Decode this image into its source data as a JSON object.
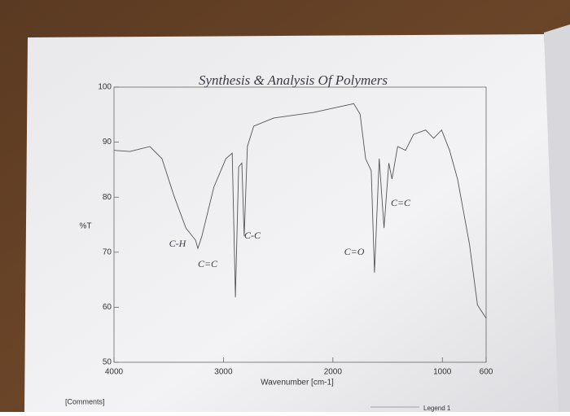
{
  "chart_data": {
    "type": "line",
    "title": "Synthesis & Analysis Of Polymers",
    "x_label": "Wavenumber [cm-1]",
    "y_label": "%T",
    "xlim": [
      4000,
      600
    ],
    "ylim": [
      50,
      100
    ],
    "xticks": [
      4000,
      3000,
      2000,
      1000,
      600
    ],
    "yticks": [
      50,
      60,
      70,
      80,
      90,
      100
    ],
    "annotations": [
      "C-H",
      "C=C",
      "C-C",
      "C=O",
      "C=C"
    ],
    "comments_label": "[Comments]",
    "legend_label": "Legend 1",
    "series": [
      {
        "color": "#555555",
        "x": [
          4000,
          3854,
          3672,
          3562,
          3453,
          3343,
          3255,
          3234,
          3197,
          3088,
          2978,
          2920,
          2891,
          2861,
          2832,
          2810,
          2781,
          2723,
          2540,
          2175,
          1810,
          1752,
          1701,
          1650,
          1620,
          1577,
          1533,
          1489,
          1460,
          1409,
          1336,
          1263,
          1153,
          1080,
          1007,
          934,
          861,
          752,
          679,
          600
        ],
        "values": [
          88.5,
          88.3,
          89.2,
          87,
          80.3,
          74.4,
          72.2,
          70.7,
          72.9,
          81.8,
          87,
          88,
          61.8,
          85.5,
          86.2,
          72.9,
          89.2,
          92.9,
          94.4,
          95.4,
          97,
          95.1,
          87,
          84.8,
          66.3,
          87,
          74.4,
          86.2,
          83.3,
          89.2,
          88.5,
          91.4,
          92.2,
          90.7,
          92.2,
          88.5,
          83.3,
          71.4,
          60.4,
          58
        ]
      }
    ]
  }
}
